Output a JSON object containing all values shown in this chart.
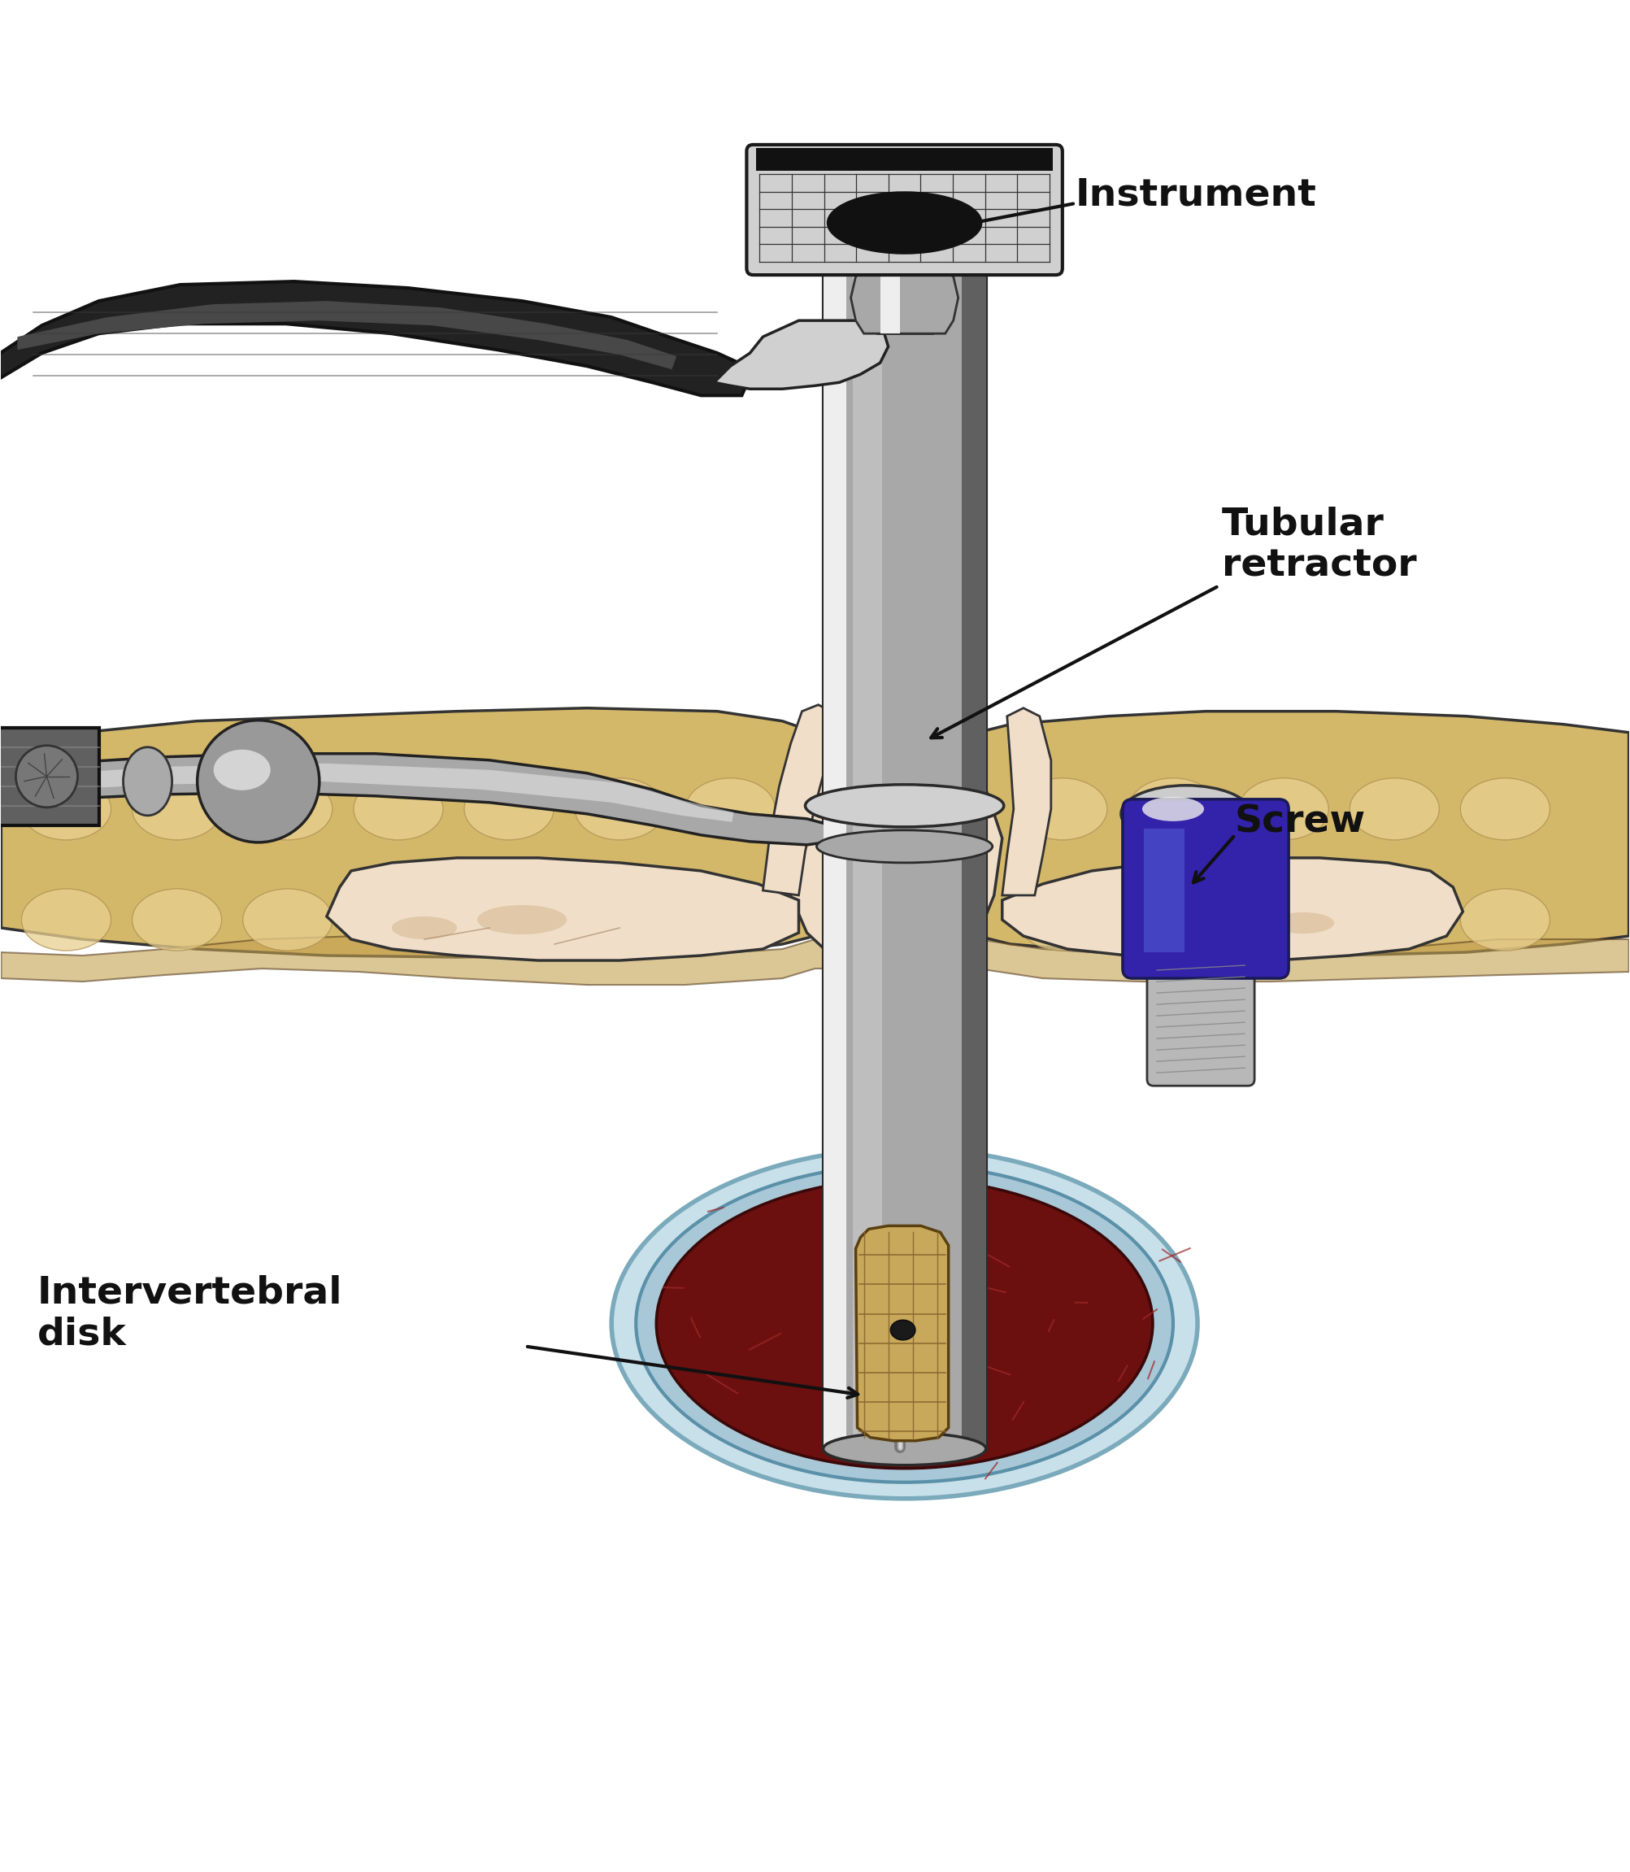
{
  "bg_color": "#ffffff",
  "labels": {
    "instrument": "Instrument",
    "tubular_retractor": "Tubular\nretractor",
    "screw": "Screw",
    "intervertebral_disk": "Intervertebral\ndisk"
  },
  "colors": {
    "bone_light": "#F0DEC8",
    "bone_medium": "#E0C8A8",
    "bone_shadow": "#C8A878",
    "metal_light": "#D0D0D0",
    "metal_mid": "#A8A8A8",
    "metal_dark": "#606060",
    "metal_highlight": "#EEEEEE",
    "disk_red": "#8B1A1A",
    "disk_dark": "#6B0F0F",
    "dark_gray": "#2C2C2C",
    "black": "#111111",
    "screw_purple": "#3322AA",
    "tissue_yellow": "#D4B86A",
    "tissue_light": "#E8D090",
    "tissue_dark": "#C4A050",
    "ligament_blue": "#A8C8D8",
    "white": "#ffffff"
  }
}
